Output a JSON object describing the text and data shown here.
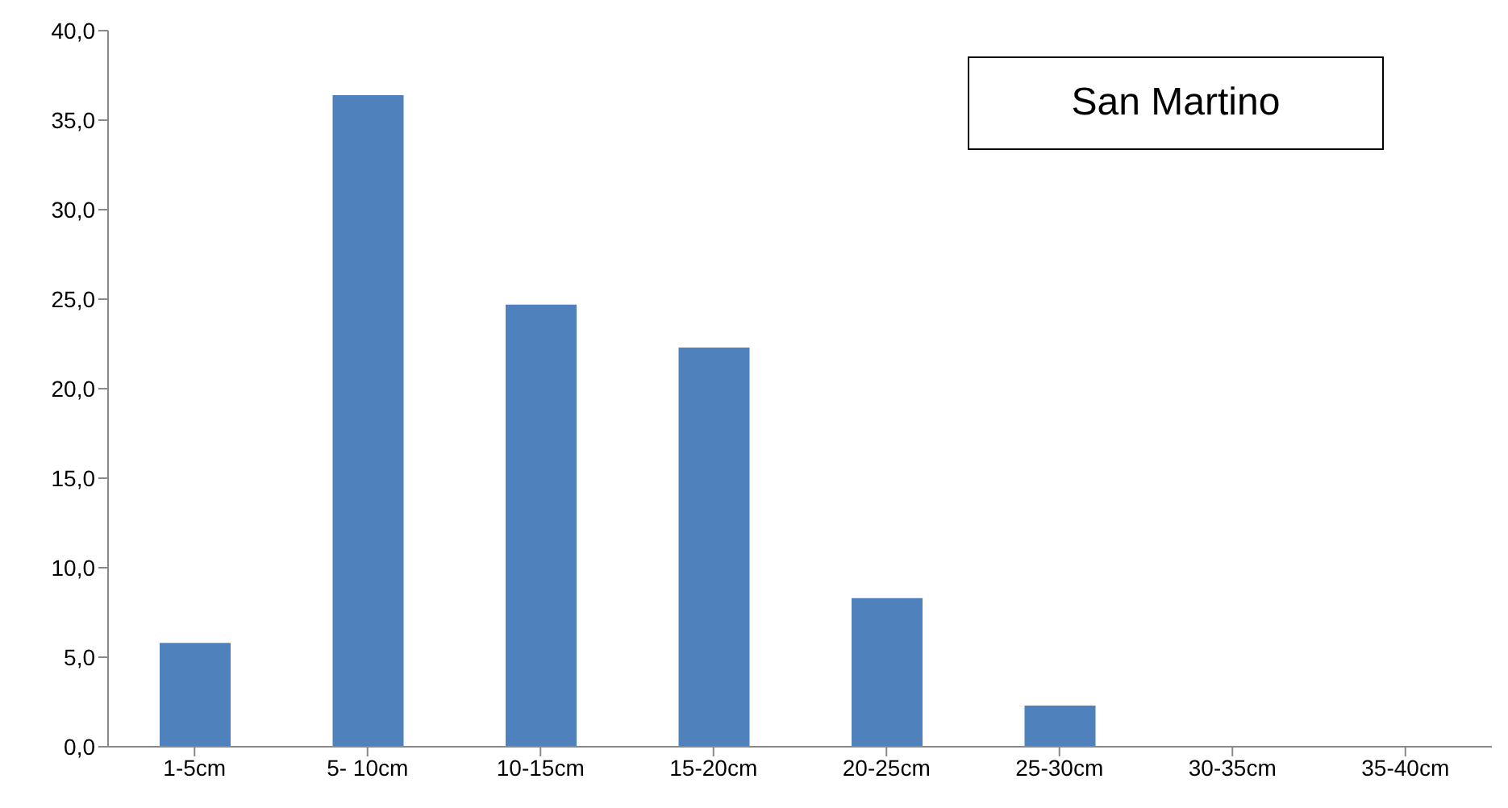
{
  "chart_data": {
    "type": "bar",
    "title": "San Martino",
    "categories": [
      "1-5cm",
      "5- 10cm",
      "10-15cm",
      "15-20cm",
      "20-25cm",
      "25-30cm",
      "30-35cm",
      "35-40cm"
    ],
    "values": [
      5.8,
      36.4,
      24.7,
      22.3,
      8.3,
      2.3,
      0,
      0
    ],
    "color": "#4f81bd",
    "ylim": [
      0,
      40
    ],
    "yticks": [
      {
        "value": 0,
        "label": "0,0"
      },
      {
        "value": 5,
        "label": "5,0"
      },
      {
        "value": 10,
        "label": "10,0"
      },
      {
        "value": 15,
        "label": "15,0"
      },
      {
        "value": 20,
        "label": "20,0"
      },
      {
        "value": 25,
        "label": "25,0"
      },
      {
        "value": 30,
        "label": "30,0"
      },
      {
        "value": 35,
        "label": "35,0"
      },
      {
        "value": 40,
        "label": "40,0"
      }
    ],
    "grid": false,
    "legend": false
  }
}
